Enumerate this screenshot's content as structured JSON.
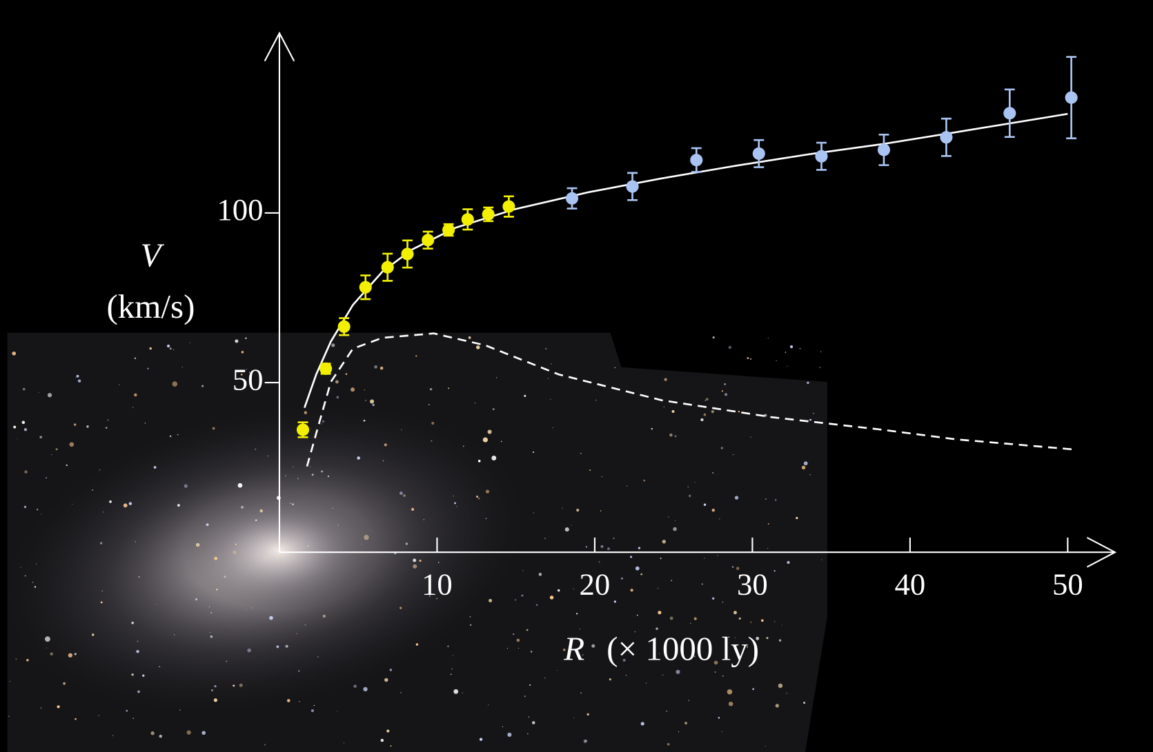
{
  "chart_data": {
    "type": "scatter",
    "y_label": "V",
    "y_unit": "(km/s)",
    "x_label": "R",
    "x_unit": "(× 1000 ly)",
    "xlim": [
      0,
      53
    ],
    "ylim": [
      0,
      153
    ],
    "xticks": [
      10,
      20,
      30,
      40,
      50
    ],
    "yticks": [
      50,
      100
    ],
    "series": [
      {
        "color": "#f2f000",
        "x": [
          1.49,
          2.94,
          4.1,
          5.46,
          6.86,
          8.12,
          9.42,
          10.73,
          11.94,
          13.25,
          14.55
        ],
        "values": [
          36.1,
          54.1,
          66.5,
          78.1,
          84.0,
          87.9,
          92.0,
          95.0,
          98.1,
          99.6,
          101.9
        ],
        "errors": [
          2.2,
          1.5,
          2.5,
          3.5,
          4,
          4,
          2.5,
          1.7,
          3,
          2,
          3
        ]
      },
      {
        "color": "#a9c4f2",
        "x": [
          18.56,
          22.39,
          26.45,
          30.41,
          34.38,
          38.34,
          42.3,
          46.32,
          50.23
        ],
        "values": [
          104.3,
          107.8,
          115.6,
          117.5,
          116.7,
          118.6,
          122.3,
          129.4,
          134.0
        ],
        "errors": [
          3,
          4,
          3.5,
          4,
          4,
          4.5,
          5.5,
          7,
          12
        ]
      }
    ],
    "curves": [
      {
        "color": "#ffffff",
        "dashed": false,
        "x": [
          1.59,
          2.33,
          3.26,
          4.66,
          6.53,
          8.4,
          11.19,
          14.93,
          19.59,
          24.25,
          28.92,
          33.58,
          38.25,
          42.91,
          50
        ],
        "values": [
          42.6,
          52.4,
          62.1,
          72.9,
          82.7,
          89.2,
          95.7,
          101.1,
          106.1,
          110.2,
          113.9,
          117.3,
          120.3,
          123.8,
          129.2
        ]
      },
      {
        "color": "#ffffff",
        "dashed": true,
        "x": [
          1.75,
          2.33,
          3.26,
          4.66,
          6.53,
          9.79,
          13.06,
          17.72,
          24.25,
          31.25,
          38.25,
          42.9,
          50.37
        ],
        "values": [
          25.3,
          35,
          50.2,
          60,
          63.2,
          64.5,
          61.0,
          52.4,
          44.8,
          39.8,
          36.1,
          33.3,
          30.3
        ]
      }
    ]
  }
}
